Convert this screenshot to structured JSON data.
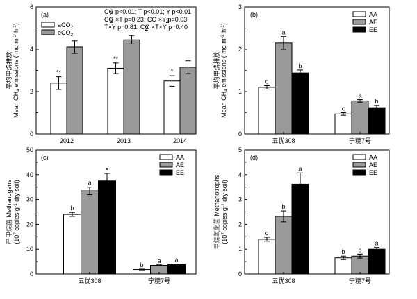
{
  "chart_data": [
    {
      "type": "bar",
      "panel_label": "(a)",
      "categories": [
        "2012",
        "2013",
        "2014"
      ],
      "series": [
        {
          "name": "aCO2",
          "name_main": "aCO",
          "name_sub": "2",
          "fill": "#ffffff",
          "values": [
            2.4,
            3.1,
            2.5
          ],
          "errors": [
            0.3,
            0.25,
            0.25
          ],
          "sig": [
            "**",
            "**",
            "*"
          ]
        },
        {
          "name": "eCO2",
          "name_main": "eCO",
          "name_sub": "2",
          "fill": "#9a9a9a",
          "values": [
            4.1,
            4.45,
            3.15
          ],
          "errors": [
            0.3,
            0.2,
            0.3
          ],
          "sig": [
            "",
            "",
            ""
          ]
        }
      ],
      "ylim": [
        0,
        6
      ],
      "yticks": [
        "0",
        "2",
        "4",
        "6"
      ],
      "ylabel_cn": "平均甲烷排放",
      "ylabel_en_main": "Mean CH",
      "ylabel_en_sub": "4",
      "ylabel_en_rest": " emissions ( mg m",
      "ylabel_en_sup1": "-2",
      "ylabel_en_mid": " h",
      "ylabel_en_sup2": "-1",
      "ylabel_en_end": ")",
      "stats": [
        "CO  p<0.01;  T  p<0.01;  Y p<0.01",
        "CO ×T p=0.23;  CO ×Y        p=0.03",
        "T×Y       p=0.81;  CO ×T×Y    p=0.40"
      ],
      "stats_sub": "2"
    },
    {
      "type": "bar",
      "panel_label": "(b)",
      "categories": [
        "五优308",
        "宁粳7号"
      ],
      "series": [
        {
          "name": "AA",
          "fill": "#ffffff",
          "values": [
            1.1,
            0.47
          ],
          "errors": [
            0.04,
            0.03
          ],
          "sig": [
            "c",
            "c"
          ]
        },
        {
          "name": "AE",
          "fill": "#9a9a9a",
          "values": [
            2.15,
            0.78
          ],
          "errors": [
            0.15,
            0.03
          ],
          "sig": [
            "a",
            "a"
          ]
        },
        {
          "name": "EE",
          "fill": "#000000",
          "values": [
            1.44,
            0.62
          ],
          "errors": [
            0.07,
            0.05
          ],
          "sig": [
            "b",
            "b"
          ]
        }
      ],
      "ylim": [
        0,
        3
      ],
      "yticks": [
        "0",
        "1",
        "2",
        "3"
      ],
      "ylabel_cn": "平均甲烷排放",
      "ylabel_en_main": "Mean CH",
      "ylabel_en_sub": "4",
      "ylabel_en_rest": " emissions ( mg m",
      "ylabel_en_sup1": "-2",
      "ylabel_en_mid": " h",
      "ylabel_en_sup2": "-1",
      "ylabel_en_end": ")"
    },
    {
      "type": "bar",
      "panel_label": "(c)",
      "categories": [
        "五优308",
        "宁粳7号"
      ],
      "series": [
        {
          "name": "AA",
          "fill": "#ffffff",
          "values": [
            24.0,
            1.8
          ],
          "errors": [
            0.8,
            0.15
          ],
          "sig": [
            "b",
            "b"
          ]
        },
        {
          "name": "AE",
          "fill": "#9a9a9a",
          "values": [
            33.5,
            3.5
          ],
          "errors": [
            1.5,
            0.2
          ],
          "sig": [
            "a",
            "a"
          ]
        },
        {
          "name": "EE",
          "fill": "#000000",
          "values": [
            37.5,
            3.8
          ],
          "errors": [
            3.0,
            0.25
          ],
          "sig": [
            "a",
            "a"
          ]
        }
      ],
      "ylim": [
        0,
        50
      ],
      "yticks": [
        "0",
        "10",
        "20",
        "30",
        "40",
        "50"
      ],
      "ylabel_cn": "产甲烷菌",
      "ylabel_en_line1": " Methanogens",
      "ylabel_en_line2_a": "(10",
      "ylabel_en_line2_sup": "7",
      "ylabel_en_line2_b": " copies g",
      "ylabel_en_line2_sup2": "-1",
      "ylabel_en_line2_c": " dry soil)"
    },
    {
      "type": "bar",
      "panel_label": "(d)",
      "categories": [
        "五优308",
        "宁粳7号"
      ],
      "series": [
        {
          "name": "AA",
          "fill": "#ffffff",
          "values": [
            1.4,
            0.65
          ],
          "errors": [
            0.08,
            0.07
          ],
          "sig": [
            "c",
            "b"
          ]
        },
        {
          "name": "AE",
          "fill": "#9a9a9a",
          "values": [
            2.32,
            0.72
          ],
          "errors": [
            0.22,
            0.08
          ],
          "sig": [
            "b",
            "b"
          ]
        },
        {
          "name": "EE",
          "fill": "#000000",
          "values": [
            3.62,
            1.0
          ],
          "errors": [
            0.45,
            0.07
          ],
          "sig": [
            "a",
            "a"
          ]
        }
      ],
      "ylim": [
        0,
        5
      ],
      "yticks": [
        "0",
        "1",
        "2",
        "3",
        "4",
        "5"
      ],
      "ylabel_cn": "甲烷氧化菌",
      "ylabel_en_line1": " Methanotrophs",
      "ylabel_en_line2_a": "(10",
      "ylabel_en_line2_sup": "7",
      "ylabel_en_line2_b": " copies g",
      "ylabel_en_line2_sup2": "-1",
      "ylabel_en_line2_c": " dry soil)"
    }
  ]
}
